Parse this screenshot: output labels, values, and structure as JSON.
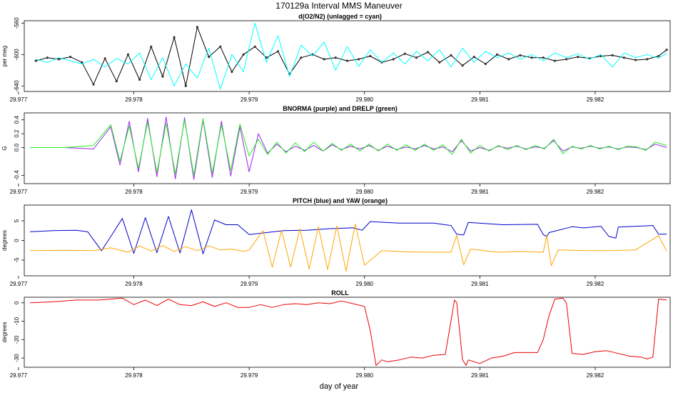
{
  "figure": {
    "title": "170129a   Interval MMS Maneuver",
    "xlabel": "day of year"
  },
  "chart_data": [
    {
      "type": "line",
      "title": "d(O2/N2) (unlagged = cyan)",
      "ylabel": "per meg",
      "xlim": [
        29.97705,
        29.98265
      ],
      "ylim": [
        -647,
        -557
      ],
      "xticks": [
        29.977,
        29.978,
        29.979,
        29.98,
        29.981,
        29.982
      ],
      "xtick_labels": [
        "29.977",
        "29.978",
        "29.979",
        "29.980",
        "29.981",
        "29.982"
      ],
      "yticks": [
        -560,
        -600,
        -640
      ],
      "ytick_labels": [
        "-560",
        "-600",
        "-640"
      ],
      "series": [
        {
          "name": "lagged",
          "color": "#000000",
          "style": "line-points",
          "x": [
            29.97715,
            29.97725,
            29.97735,
            29.97745,
            29.97755,
            29.97765,
            29.97775,
            29.97785,
            29.97795,
            29.97805,
            29.97815,
            29.97825,
            29.97835,
            29.97845,
            29.97855,
            29.97865,
            29.97875,
            29.97885,
            29.97895,
            29.97905,
            29.97915,
            29.97925,
            29.97935,
            29.97945,
            29.97955,
            29.97965,
            29.97975,
            29.97985,
            29.97995,
            29.98005,
            29.98015,
            29.98025,
            29.98035,
            29.98045,
            29.98055,
            29.98065,
            29.98075,
            29.98085,
            29.98095,
            29.98105,
            29.98115,
            29.98125,
            29.98135,
            29.98145,
            29.98155,
            29.98165,
            29.98175,
            29.98185,
            29.98195,
            29.98205,
            29.98215,
            29.98225,
            29.98235,
            29.98245,
            29.98255,
            29.98262
          ],
          "values": [
            -608,
            -604,
            -606,
            -603,
            -610,
            -638,
            -605,
            -634,
            -600,
            -632,
            -590,
            -628,
            -578,
            -640,
            -565,
            -603,
            -590,
            -622,
            -600,
            -590,
            -604,
            -596,
            -625,
            -604,
            -600,
            -606,
            -604,
            -608,
            -606,
            -602,
            -610,
            -606,
            -599,
            -604,
            -597,
            -610,
            -601,
            -614,
            -603,
            -612,
            -600,
            -606,
            -601,
            -604,
            -604,
            -608,
            -606,
            -603,
            -605,
            -602,
            -601,
            -604,
            -607,
            -606,
            -602,
            -594
          ]
        },
        {
          "name": "unlagged (cyan)",
          "color": "#00ffff",
          "style": "line",
          "x": [
            29.97715,
            29.97725,
            29.97735,
            29.97745,
            29.97755,
            29.97765,
            29.97775,
            29.97785,
            29.97795,
            29.97805,
            29.97815,
            29.97825,
            29.97835,
            29.97845,
            29.97855,
            29.97865,
            29.97875,
            29.97885,
            29.97895,
            29.97905,
            29.97915,
            29.97925,
            29.97935,
            29.97945,
            29.97955,
            29.97965,
            29.97975,
            29.97985,
            29.97995,
            29.98005,
            29.98015,
            29.98025,
            29.98035,
            29.98045,
            29.98055,
            29.98065,
            29.98075,
            29.98085,
            29.98095,
            29.98105,
            29.98115,
            29.98125,
            29.98135,
            29.98145,
            29.98155,
            29.98165,
            29.98175,
            29.98185,
            29.98195,
            29.98205,
            29.98215,
            29.98225,
            29.98235,
            29.98245,
            29.98255,
            29.98262
          ],
          "values": [
            -606,
            -610,
            -604,
            -608,
            -612,
            -606,
            -616,
            -605,
            -612,
            -598,
            -632,
            -604,
            -640,
            -612,
            -630,
            -592,
            -644,
            -600,
            -622,
            -560,
            -610,
            -576,
            -628,
            -588,
            -602,
            -584,
            -620,
            -590,
            -615,
            -594,
            -610,
            -598,
            -612,
            -596,
            -608,
            -594,
            -616,
            -592,
            -610,
            -596,
            -604,
            -598,
            -606,
            -600,
            -608,
            -598,
            -604,
            -599,
            -606,
            -600,
            -616,
            -598,
            -604,
            -600,
            -605,
            -598
          ]
        }
      ]
    },
    {
      "type": "line",
      "title": "BNORMA (purple) and DRELP (green)",
      "ylabel": "G",
      "xlim": [
        29.97705,
        29.98265
      ],
      "ylim": [
        -0.52,
        0.5
      ],
      "xticks": [
        29.977,
        29.978,
        29.979,
        29.98,
        29.981,
        29.982
      ],
      "xtick_labels": [
        "29.977",
        "29.978",
        "29.979",
        "29.980",
        "29.981",
        "29.982"
      ],
      "yticks": [
        0.4,
        0.2,
        0.0,
        -0.4
      ],
      "ytick_labels": [
        "0.4",
        "0.2",
        "0.0",
        "-0.4"
      ],
      "series": [
        {
          "name": "BNORMA",
          "color": "#a020f0",
          "x": [
            29.9771,
            29.9774,
            29.97765,
            29.9778,
            29.97788,
            29.97796,
            29.97804,
            29.97812,
            29.9782,
            29.97828,
            29.97836,
            29.97844,
            29.97852,
            29.9786,
            29.97868,
            29.97876,
            29.97884,
            29.97892,
            29.979,
            29.97908,
            29.97916,
            29.97924,
            29.97932,
            29.9794,
            29.97948,
            29.97956,
            29.97964,
            29.97972,
            29.9798,
            29.97988,
            29.97996,
            29.98004,
            29.98012,
            29.9802,
            29.98028,
            29.98036,
            29.98044,
            29.98052,
            29.9806,
            29.98068,
            29.98076,
            29.98084,
            29.98092,
            29.981,
            29.98108,
            29.98116,
            29.98124,
            29.98132,
            29.9814,
            29.98148,
            29.98156,
            29.98164,
            29.98172,
            29.9818,
            29.98188,
            29.98196,
            29.98204,
            29.98212,
            29.9822,
            29.98228,
            29.98236,
            29.98244,
            29.98252,
            29.98262
          ],
          "values": [
            0.0,
            0.0,
            -0.02,
            0.3,
            -0.25,
            0.38,
            -0.35,
            0.42,
            -0.42,
            0.44,
            -0.45,
            0.43,
            -0.46,
            0.4,
            -0.43,
            0.38,
            -0.41,
            0.3,
            -0.35,
            0.2,
            -0.08,
            0.05,
            -0.06,
            0.02,
            -0.04,
            0.03,
            -0.05,
            0.04,
            -0.03,
            0.02,
            -0.02,
            0.03,
            -0.04,
            0.02,
            -0.03,
            0.01,
            -0.02,
            0.03,
            -0.02,
            0.01,
            -0.06,
            0.1,
            -0.05,
            0.0,
            -0.04,
            0.02,
            -0.01,
            0.02,
            -0.02,
            0.01,
            -0.01,
            0.1,
            -0.05,
            0.01,
            -0.01,
            0.02,
            -0.01,
            0.01,
            -0.02,
            0.01,
            0.0,
            -0.03,
            0.05,
            0.0
          ]
        },
        {
          "name": "DRELP",
          "color": "#22ee22",
          "x": [
            29.9771,
            29.9774,
            29.97765,
            29.9778,
            29.97788,
            29.97796,
            29.97804,
            29.97812,
            29.9782,
            29.97828,
            29.97836,
            29.97844,
            29.97852,
            29.9786,
            29.97868,
            29.97876,
            29.97884,
            29.97892,
            29.979,
            29.97908,
            29.97916,
            29.97924,
            29.97932,
            29.9794,
            29.97948,
            29.97956,
            29.97964,
            29.97972,
            29.9798,
            29.97988,
            29.97996,
            29.98004,
            29.98012,
            29.9802,
            29.98028,
            29.98036,
            29.98044,
            29.98052,
            29.9806,
            29.98068,
            29.98076,
            29.98084,
            29.98092,
            29.981,
            29.98108,
            29.98116,
            29.98124,
            29.98132,
            29.9814,
            29.98148,
            29.98156,
            29.98164,
            29.98172,
            29.9818,
            29.98188,
            29.98196,
            29.98204,
            29.98212,
            29.9822,
            29.98228,
            29.98236,
            29.98244,
            29.98252,
            29.98262
          ],
          "values": [
            0.0,
            0.0,
            0.03,
            0.33,
            -0.2,
            0.31,
            -0.3,
            0.37,
            -0.36,
            0.35,
            -0.38,
            0.4,
            -0.4,
            0.42,
            -0.37,
            0.33,
            -0.33,
            0.34,
            -0.12,
            0.12,
            -0.1,
            0.08,
            -0.08,
            0.07,
            -0.06,
            0.08,
            -0.05,
            0.06,
            -0.04,
            0.05,
            -0.05,
            0.05,
            -0.05,
            0.05,
            -0.04,
            0.04,
            -0.04,
            0.05,
            -0.04,
            0.04,
            -0.1,
            0.12,
            -0.08,
            0.03,
            -0.05,
            0.03,
            -0.03,
            0.03,
            -0.03,
            0.03,
            -0.02,
            0.12,
            -0.09,
            0.02,
            -0.02,
            0.03,
            -0.02,
            0.02,
            -0.03,
            0.02,
            0.01,
            -0.04,
            0.08,
            0.03
          ]
        }
      ]
    },
    {
      "type": "line",
      "title": "PITCH (blue) and YAW (orange)",
      "ylabel": "degrees",
      "xlim": [
        29.97705,
        29.98265
      ],
      "ylim": [
        -9,
        9
      ],
      "xticks": [
        29.977,
        29.978,
        29.979,
        29.98,
        29.981,
        29.982
      ],
      "xtick_labels": [
        "29.977",
        "29.978",
        "29.979",
        "29.980",
        "29.981",
        "29.982"
      ],
      "yticks": [
        5,
        0,
        -5
      ],
      "ytick_labels": [
        "5",
        "0",
        "-5"
      ],
      "series": [
        {
          "name": "PITCH",
          "color": "#0000cc",
          "x": [
            29.9771,
            29.9773,
            29.9775,
            29.9776,
            29.97772,
            29.9778,
            29.9779,
            29.978,
            29.9781,
            29.9782,
            29.9783,
            29.9784,
            29.9785,
            29.9786,
            29.9787,
            29.9788,
            29.9789,
            29.979,
            29.97915,
            29.9793,
            29.9795,
            29.9797,
            29.9799,
            29.97998,
            29.98005,
            29.9803,
            29.9806,
            29.98075,
            29.9808,
            29.98086,
            29.9809,
            29.9812,
            29.9815,
            29.98155,
            29.98158,
            29.9816,
            29.9818,
            29.9819,
            29.98205,
            29.98212,
            29.98218,
            29.9822,
            29.9825,
            29.98255,
            29.98262
          ],
          "values": [
            2.2,
            2.5,
            2.6,
            2.2,
            -2.6,
            1.0,
            5.6,
            -3.3,
            5.8,
            -3.1,
            6.1,
            -3.2,
            7.8,
            -3.4,
            5.2,
            4.0,
            4.0,
            1.5,
            2.0,
            2.5,
            2.6,
            3.0,
            3.2,
            2.6,
            4.8,
            4.4,
            4.4,
            3.8,
            1.6,
            1.4,
            4.6,
            4.0,
            4.1,
            1.5,
            1.0,
            2.0,
            3.5,
            3.2,
            3.6,
            1.0,
            0.6,
            3.4,
            3.8,
            1.6,
            1.6
          ]
        },
        {
          "name": "YAW",
          "color": "#ffa500",
          "x": [
            29.9771,
            29.9774,
            29.97765,
            29.9778,
            29.97795,
            29.97805,
            29.97815,
            29.97825,
            29.97835,
            29.97845,
            29.97855,
            29.97865,
            29.97875,
            29.97885,
            29.97895,
            29.979,
            29.97912,
            29.9792,
            29.97928,
            29.97936,
            29.97944,
            29.97952,
            29.9796,
            29.97968,
            29.97976,
            29.97984,
            29.97992,
            29.98,
            29.98015,
            29.98035,
            29.98055,
            29.98075,
            29.9808,
            29.98086,
            29.98092,
            29.98115,
            29.98135,
            29.98155,
            29.98158,
            29.98162,
            29.98168,
            29.9819,
            29.98215,
            29.98235,
            29.98255,
            29.98262
          ],
          "values": [
            -2.6,
            -2.5,
            -2.6,
            -1.9,
            -3.0,
            -1.4,
            -2.7,
            -1.3,
            -2.8,
            -1.6,
            -2.6,
            -1.4,
            -2.4,
            -2.2,
            -2.8,
            -2.4,
            2.5,
            -6.8,
            2.6,
            -6.8,
            3.0,
            -7.3,
            3.5,
            -7.4,
            3.7,
            -7.8,
            4.2,
            -6.3,
            -2.6,
            -2.9,
            -3.0,
            -3.0,
            1.3,
            -6.2,
            -2.2,
            -3.0,
            -2.8,
            -3.0,
            1.2,
            -6.4,
            -2.4,
            -2.6,
            -2.6,
            -2.4,
            1.2,
            -2.7
          ]
        }
      ]
    },
    {
      "type": "line",
      "title": "ROLL",
      "ylabel": "degrees",
      "xlim": [
        29.97705,
        29.98265
      ],
      "ylim": [
        -35,
        3
      ],
      "xticks": [
        29.977,
        29.978,
        29.979,
        29.98,
        29.981,
        29.982
      ],
      "xtick_labels": [
        "29.977",
        "29.978",
        "29.979",
        "29.980",
        "29.981",
        "29.982"
      ],
      "yticks": [
        0,
        -10,
        -20,
        -30
      ],
      "ytick_labels": [
        "0",
        "-10",
        "-20",
        "-30"
      ],
      "series": [
        {
          "name": "ROLL",
          "color": "#ee0000",
          "x": [
            29.9771,
            29.9773,
            29.9775,
            29.9777,
            29.9779,
            29.978,
            29.9781,
            29.9782,
            29.9783,
            29.9784,
            29.9785,
            29.9786,
            29.9787,
            29.9788,
            29.9789,
            29.979,
            29.9791,
            29.9792,
            29.9793,
            29.9794,
            29.9795,
            29.9796,
            29.9797,
            29.9798,
            29.9799,
            29.98,
            29.98005,
            29.9801,
            29.98015,
            29.9802,
            29.9803,
            29.9804,
            29.9805,
            29.9806,
            29.9807,
            29.98075,
            29.98078,
            29.9808,
            29.98085,
            29.98088,
            29.9809,
            29.981,
            29.9811,
            29.9812,
            29.9813,
            29.9814,
            29.9815,
            29.98155,
            29.9816,
            29.98165,
            29.98172,
            29.98175,
            29.9818,
            29.9819,
            29.982,
            29.9821,
            29.9822,
            29.9823,
            29.9824,
            29.98245,
            29.9825,
            29.98255,
            29.98262
          ],
          "values": [
            0.0,
            0.5,
            1.5,
            1.5,
            2.5,
            -1.0,
            1.5,
            -1.5,
            2.0,
            -1.0,
            -1.5,
            0.5,
            -2.0,
            0.0,
            -2.5,
            -2.5,
            -1.0,
            -2.5,
            -1.0,
            -0.5,
            -1.0,
            0.0,
            -0.5,
            1.0,
            -0.5,
            -2.0,
            -15.0,
            -34.0,
            -31.0,
            -32.0,
            -31.0,
            -29.5,
            -30.0,
            -28.5,
            -28.0,
            -10.0,
            1.5,
            0.0,
            -31.0,
            -34.0,
            -31.0,
            -33.0,
            -30.0,
            -29.0,
            -27.0,
            -27.0,
            -27.0,
            -20.0,
            -7.0,
            2.0,
            2.5,
            0.0,
            -27.5,
            -28.0,
            -26.5,
            -26.0,
            -27.5,
            -29.0,
            -29.5,
            -30.5,
            -29.5,
            2.0,
            1.5
          ]
        }
      ]
    }
  ]
}
